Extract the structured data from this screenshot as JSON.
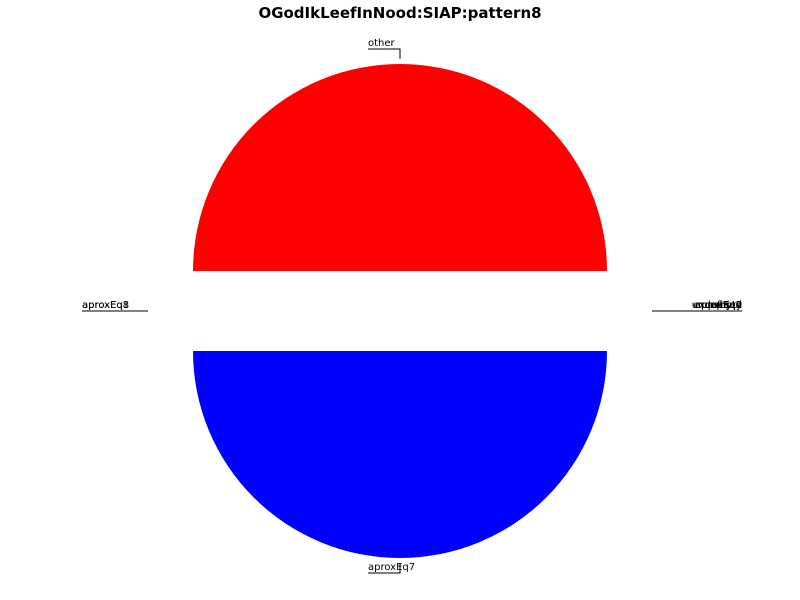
{
  "chart_data": {
    "type": "pie",
    "title": "OGodIkLeefInNood:SIAP:pattern8",
    "slices": [
      {
        "label": "other",
        "value": 50,
        "color": "#ff0000",
        "exploded": true
      },
      {
        "label": "aproxEq7",
        "value": 50,
        "color": "#0000ff",
        "exploded": true
      }
    ],
    "overlapping_labels": {
      "left": [
        "aproxEq8",
        "aproxEq1"
      ],
      "right": [
        "aproxEq9",
        "parsed",
        "undefined",
        "exception",
        "empty",
        "byte",
        "aproxEq2"
      ]
    },
    "legend": "none",
    "grid": false
  }
}
